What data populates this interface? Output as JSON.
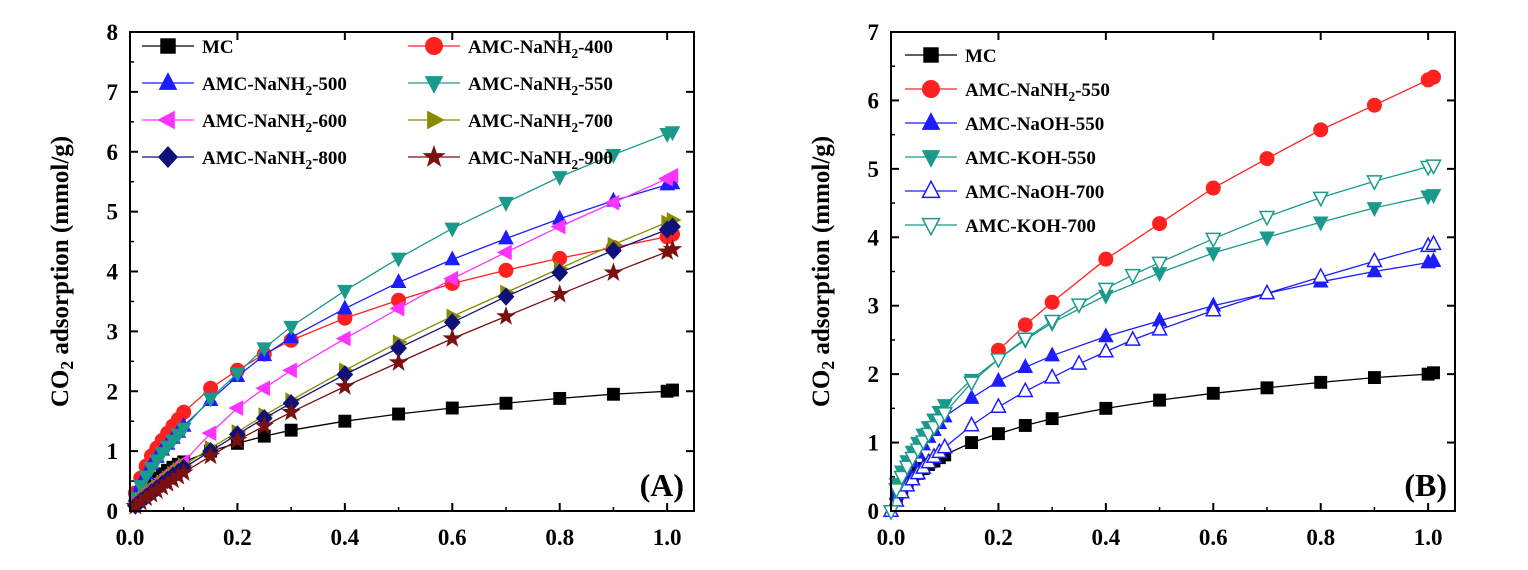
{
  "chart_data": [
    {
      "type": "line",
      "panel_label": "(A)",
      "ylabel_main": "CO",
      "ylabel_sub": "2",
      "ylabel_rest": " adsorption (mmol/g)",
      "xlabel": "",
      "xlim": [
        0.0,
        1.05
      ],
      "ylim": [
        0,
        8
      ],
      "xticks": [
        "0.0",
        "0.2",
        "0.4",
        "0.6",
        "0.8",
        "1.0"
      ],
      "yticks": [
        "0",
        "1",
        "2",
        "3",
        "4",
        "5",
        "6",
        "7",
        "8"
      ],
      "legend_placement": "top",
      "series": [
        {
          "name": "MC",
          "label_main": "MC",
          "label_sub": "",
          "label_rest": "",
          "color": "#000000",
          "marker": "square",
          "filled": true,
          "x": [
            0.01,
            0.02,
            0.03,
            0.04,
            0.05,
            0.06,
            0.07,
            0.08,
            0.09,
            0.1,
            0.15,
            0.2,
            0.25,
            0.3,
            0.4,
            0.5,
            0.6,
            0.7,
            0.8,
            0.9,
            1.0,
            1.01
          ],
          "y": [
            0.2,
            0.3,
            0.4,
            0.48,
            0.55,
            0.62,
            0.68,
            0.73,
            0.78,
            0.82,
            1.0,
            1.13,
            1.25,
            1.35,
            1.5,
            1.62,
            1.72,
            1.8,
            1.88,
            1.95,
            2.0,
            2.02
          ]
        },
        {
          "name": "AMC-NaNH2-400",
          "label_main": "AMC-NaNH",
          "label_sub": "2",
          "label_rest": "-400",
          "color": "#ff2020",
          "marker": "circle",
          "filled": true,
          "x": [
            0.01,
            0.02,
            0.03,
            0.04,
            0.05,
            0.06,
            0.07,
            0.08,
            0.09,
            0.1,
            0.15,
            0.2,
            0.25,
            0.3,
            0.4,
            0.5,
            0.6,
            0.7,
            0.8,
            0.9,
            1.0,
            1.01
          ],
          "y": [
            0.3,
            0.55,
            0.75,
            0.92,
            1.05,
            1.18,
            1.3,
            1.42,
            1.53,
            1.65,
            2.05,
            2.35,
            2.62,
            2.85,
            3.22,
            3.52,
            3.8,
            4.02,
            4.22,
            4.4,
            4.58,
            4.62
          ]
        },
        {
          "name": "AMC-NaNH2-500",
          "label_main": "AMC-NaNH",
          "label_sub": "2",
          "label_rest": "-500",
          "color": "#1c1cff",
          "marker": "triangle-up",
          "filled": true,
          "x": [
            0.01,
            0.02,
            0.03,
            0.04,
            0.05,
            0.06,
            0.07,
            0.08,
            0.09,
            0.1,
            0.15,
            0.2,
            0.25,
            0.3,
            0.4,
            0.5,
            0.6,
            0.7,
            0.8,
            0.9,
            1.0,
            1.01
          ],
          "y": [
            0.25,
            0.45,
            0.62,
            0.78,
            0.9,
            1.02,
            1.12,
            1.22,
            1.32,
            1.42,
            1.85,
            2.25,
            2.6,
            2.9,
            3.38,
            3.82,
            4.2,
            4.55,
            4.88,
            5.18,
            5.45,
            5.47
          ]
        },
        {
          "name": "AMC-NaNH2-550",
          "label_main": "AMC-NaNH",
          "label_sub": "2",
          "label_rest": "-550",
          "color": "#1a9a8a",
          "marker": "triangle-down",
          "filled": true,
          "x": [
            0.01,
            0.02,
            0.03,
            0.04,
            0.05,
            0.06,
            0.07,
            0.08,
            0.09,
            0.1,
            0.15,
            0.2,
            0.25,
            0.3,
            0.4,
            0.5,
            0.6,
            0.7,
            0.8,
            0.9,
            1.0,
            1.01
          ],
          "y": [
            0.22,
            0.42,
            0.58,
            0.72,
            0.85,
            0.97,
            1.08,
            1.18,
            1.28,
            1.38,
            1.88,
            2.3,
            2.72,
            3.08,
            3.68,
            4.22,
            4.72,
            5.15,
            5.58,
            5.95,
            6.3,
            6.33
          ]
        },
        {
          "name": "AMC-NaNH2-600",
          "label_main": "AMC-NaNH",
          "label_sub": "2",
          "label_rest": "-600",
          "color": "#ff33ff",
          "marker": "triangle-left",
          "filled": true,
          "x": [
            0.01,
            0.02,
            0.03,
            0.04,
            0.05,
            0.06,
            0.07,
            0.08,
            0.09,
            0.1,
            0.15,
            0.2,
            0.25,
            0.3,
            0.4,
            0.5,
            0.6,
            0.7,
            0.8,
            0.9,
            1.0,
            1.01
          ],
          "y": [
            0.12,
            0.22,
            0.3,
            0.38,
            0.46,
            0.54,
            0.61,
            0.68,
            0.75,
            0.82,
            1.3,
            1.72,
            2.05,
            2.35,
            2.88,
            3.38,
            3.88,
            4.32,
            4.75,
            5.15,
            5.55,
            5.6
          ]
        },
        {
          "name": "AMC-NaNH2-700",
          "label_main": "AMC-NaNH",
          "label_sub": "2",
          "label_rest": "-700",
          "color": "#8a8a00",
          "marker": "triangle-right",
          "filled": true,
          "x": [
            0.01,
            0.02,
            0.03,
            0.04,
            0.05,
            0.06,
            0.07,
            0.08,
            0.09,
            0.1,
            0.15,
            0.2,
            0.25,
            0.3,
            0.4,
            0.5,
            0.6,
            0.7,
            0.8,
            0.9,
            1.0,
            1.01
          ],
          "y": [
            0.1,
            0.18,
            0.26,
            0.34,
            0.41,
            0.48,
            0.55,
            0.62,
            0.69,
            0.76,
            1.05,
            1.32,
            1.6,
            1.85,
            2.35,
            2.82,
            3.25,
            3.65,
            4.05,
            4.45,
            4.82,
            4.86
          ]
        },
        {
          "name": "AMC-NaNH2-800",
          "label_main": "AMC-NaNH",
          "label_sub": "2",
          "label_rest": "-800",
          "color": "#10107a",
          "marker": "diamond",
          "filled": true,
          "x": [
            0.01,
            0.02,
            0.03,
            0.04,
            0.05,
            0.06,
            0.07,
            0.08,
            0.09,
            0.1,
            0.15,
            0.2,
            0.25,
            0.3,
            0.4,
            0.5,
            0.6,
            0.7,
            0.8,
            0.9,
            1.0,
            1.01
          ],
          "y": [
            0.09,
            0.17,
            0.24,
            0.31,
            0.38,
            0.45,
            0.52,
            0.59,
            0.65,
            0.72,
            1.0,
            1.28,
            1.55,
            1.8,
            2.28,
            2.72,
            3.15,
            3.58,
            3.98,
            4.35,
            4.7,
            4.75
          ]
        },
        {
          "name": "AMC-NaNH2-900",
          "label_main": "AMC-NaNH",
          "label_sub": "2",
          "label_rest": "-900",
          "color": "#7a1010",
          "marker": "star",
          "filled": true,
          "x": [
            0.01,
            0.02,
            0.03,
            0.04,
            0.05,
            0.06,
            0.07,
            0.08,
            0.09,
            0.1,
            0.15,
            0.2,
            0.25,
            0.3,
            0.4,
            0.5,
            0.6,
            0.7,
            0.8,
            0.9,
            1.0,
            1.01
          ],
          "y": [
            0.08,
            0.15,
            0.22,
            0.28,
            0.34,
            0.4,
            0.46,
            0.52,
            0.58,
            0.64,
            0.92,
            1.18,
            1.42,
            1.65,
            2.08,
            2.48,
            2.88,
            3.25,
            3.62,
            3.98,
            4.33,
            4.37
          ]
        }
      ]
    },
    {
      "type": "line",
      "panel_label": "(B)",
      "ylabel_main": "CO",
      "ylabel_sub": "2",
      "ylabel_rest": " adsorption (mmol/g)",
      "xlabel": "",
      "xlim": [
        0.0,
        1.05
      ],
      "ylim": [
        0,
        7
      ],
      "xticks": [
        "0.0",
        "0.2",
        "0.4",
        "0.6",
        "0.8",
        "1.0"
      ],
      "yticks": [
        "0",
        "1",
        "2",
        "3",
        "4",
        "5",
        "6",
        "7"
      ],
      "legend_placement": "top-left",
      "series": [
        {
          "name": "MC",
          "label_main": "MC",
          "label_sub": "",
          "label_rest": "",
          "color": "#000000",
          "marker": "square",
          "filled": true,
          "x": [
            0.01,
            0.02,
            0.03,
            0.04,
            0.05,
            0.06,
            0.07,
            0.08,
            0.09,
            0.1,
            0.15,
            0.2,
            0.25,
            0.3,
            0.4,
            0.5,
            0.6,
            0.7,
            0.8,
            0.9,
            1.0,
            1.01
          ],
          "y": [
            0.2,
            0.3,
            0.4,
            0.48,
            0.55,
            0.62,
            0.68,
            0.73,
            0.78,
            0.82,
            1.0,
            1.13,
            1.25,
            1.35,
            1.5,
            1.62,
            1.72,
            1.8,
            1.88,
            1.95,
            2.0,
            2.02
          ]
        },
        {
          "name": "AMC-NaNH2-550",
          "label_main": "AMC-NaNH",
          "label_sub": "2",
          "label_rest": "-550",
          "color": "#ff2020",
          "marker": "circle",
          "filled": true,
          "x": [
            0.2,
            0.25,
            0.3,
            0.4,
            0.5,
            0.6,
            0.7,
            0.8,
            0.9,
            1.0,
            1.01
          ],
          "y": [
            2.35,
            2.72,
            3.05,
            3.68,
            4.2,
            4.72,
            5.15,
            5.57,
            5.93,
            6.3,
            6.34
          ]
        },
        {
          "name": "AMC-NaOH-550",
          "label_main": "AMC-NaOH-550",
          "label_sub": "",
          "label_rest": "",
          "color": "#1c1cff",
          "marker": "triangle-up",
          "filled": true,
          "x": [
            0.01,
            0.02,
            0.03,
            0.04,
            0.05,
            0.06,
            0.07,
            0.08,
            0.09,
            0.1,
            0.15,
            0.2,
            0.25,
            0.3,
            0.4,
            0.5,
            0.6,
            0.7,
            0.8,
            0.9,
            1.0,
            1.01
          ],
          "y": [
            0.25,
            0.42,
            0.58,
            0.72,
            0.85,
            0.97,
            1.08,
            1.18,
            1.28,
            1.38,
            1.65,
            1.9,
            2.1,
            2.27,
            2.55,
            2.78,
            3.0,
            3.18,
            3.35,
            3.5,
            3.63,
            3.65
          ]
        },
        {
          "name": "AMC-KOH-550",
          "label_main": "AMC-KOH-550",
          "label_sub": "",
          "label_rest": "",
          "color": "#1a9a8a",
          "marker": "triangle-down",
          "filled": true,
          "x": [
            0.01,
            0.02,
            0.03,
            0.04,
            0.05,
            0.06,
            0.07,
            0.08,
            0.09,
            0.1,
            0.15,
            0.2,
            0.25,
            0.3,
            0.4,
            0.5,
            0.6,
            0.7,
            0.8,
            0.9,
            1.0,
            1.01
          ],
          "y": [
            0.4,
            0.58,
            0.73,
            0.87,
            1.0,
            1.12,
            1.23,
            1.34,
            1.45,
            1.55,
            1.92,
            2.22,
            2.5,
            2.75,
            3.15,
            3.48,
            3.77,
            4.0,
            4.22,
            4.43,
            4.6,
            4.62
          ]
        },
        {
          "name": "AMC-NaOH-700",
          "label_main": "AMC-NaOH-700",
          "label_sub": "",
          "label_rest": "",
          "color": "#1c1cff",
          "marker": "triangle-up",
          "filled": false,
          "x": [
            0.0,
            0.01,
            0.02,
            0.03,
            0.04,
            0.05,
            0.06,
            0.07,
            0.08,
            0.09,
            0.1,
            0.15,
            0.2,
            0.25,
            0.3,
            0.35,
            0.4,
            0.45,
            0.5,
            0.6,
            0.7,
            0.8,
            0.9,
            1.0,
            1.01
          ],
          "y": [
            0.0,
            0.15,
            0.27,
            0.37,
            0.46,
            0.55,
            0.63,
            0.71,
            0.79,
            0.86,
            0.93,
            1.25,
            1.52,
            1.75,
            1.95,
            2.15,
            2.33,
            2.5,
            2.65,
            2.93,
            3.18,
            3.42,
            3.65,
            3.87,
            3.9
          ]
        },
        {
          "name": "AMC-KOH-700",
          "label_main": "AMC-KOH-700",
          "label_sub": "",
          "label_rest": "",
          "color": "#1a9a8a",
          "marker": "triangle-down",
          "filled": false,
          "x": [
            0.0,
            0.01,
            0.02,
            0.03,
            0.04,
            0.05,
            0.06,
            0.07,
            0.08,
            0.09,
            0.1,
            0.15,
            0.2,
            0.25,
            0.3,
            0.35,
            0.4,
            0.45,
            0.5,
            0.6,
            0.7,
            0.8,
            0.9,
            1.0,
            1.01
          ],
          "y": [
            0.0,
            0.32,
            0.5,
            0.65,
            0.78,
            0.9,
            1.02,
            1.13,
            1.23,
            1.33,
            1.43,
            1.88,
            2.22,
            2.52,
            2.78,
            3.02,
            3.25,
            3.45,
            3.63,
            3.98,
            4.3,
            4.58,
            4.82,
            5.03,
            5.05
          ]
        }
      ]
    }
  ]
}
